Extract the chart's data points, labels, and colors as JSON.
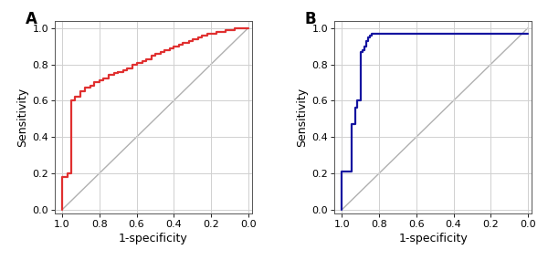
{
  "panel_A": {
    "label": "A",
    "color": "#e03030",
    "roc_fpr": [
      1.0,
      1.0,
      0.97,
      0.97,
      0.95,
      0.95,
      0.93,
      0.93,
      0.9,
      0.9,
      0.88,
      0.88,
      0.85,
      0.85,
      0.83,
      0.83,
      0.8,
      0.8,
      0.78,
      0.78,
      0.75,
      0.75,
      0.72,
      0.72,
      0.7,
      0.7,
      0.67,
      0.67,
      0.65,
      0.65,
      0.62,
      0.62,
      0.6,
      0.6,
      0.57,
      0.57,
      0.55,
      0.55,
      0.52,
      0.52,
      0.5,
      0.5,
      0.47,
      0.47,
      0.45,
      0.45,
      0.42,
      0.42,
      0.4,
      0.4,
      0.37,
      0.37,
      0.35,
      0.35,
      0.32,
      0.32,
      0.3,
      0.3,
      0.27,
      0.27,
      0.25,
      0.25,
      0.22,
      0.22,
      0.2,
      0.2,
      0.17,
      0.17,
      0.15,
      0.15,
      0.12,
      0.12,
      0.1,
      0.1,
      0.07,
      0.07,
      0.05,
      0.05,
      0.02,
      0.02,
      0.0
    ],
    "roc_tpr": [
      0.0,
      0.18,
      0.18,
      0.2,
      0.2,
      0.6,
      0.6,
      0.62,
      0.62,
      0.65,
      0.65,
      0.67,
      0.67,
      0.68,
      0.68,
      0.7,
      0.7,
      0.71,
      0.71,
      0.72,
      0.72,
      0.74,
      0.74,
      0.75,
      0.75,
      0.76,
      0.76,
      0.77,
      0.77,
      0.78,
      0.78,
      0.8,
      0.8,
      0.81,
      0.81,
      0.82,
      0.82,
      0.83,
      0.83,
      0.85,
      0.85,
      0.86,
      0.86,
      0.87,
      0.87,
      0.88,
      0.88,
      0.89,
      0.89,
      0.9,
      0.9,
      0.91,
      0.91,
      0.92,
      0.92,
      0.93,
      0.93,
      0.94,
      0.94,
      0.95,
      0.95,
      0.96,
      0.96,
      0.97,
      0.97,
      0.97,
      0.97,
      0.98,
      0.98,
      0.98,
      0.98,
      0.99,
      0.99,
      0.99,
      0.99,
      1.0,
      1.0,
      1.0,
      1.0,
      1.0,
      1.0
    ]
  },
  "panel_B": {
    "label": "B",
    "color": "#1515a0",
    "roc_fpr": [
      1.0,
      1.0,
      0.95,
      0.95,
      0.93,
      0.93,
      0.92,
      0.92,
      0.9,
      0.9,
      0.89,
      0.89,
      0.88,
      0.88,
      0.87,
      0.87,
      0.86,
      0.86,
      0.85,
      0.85,
      0.84,
      0.84,
      0.83,
      0.83,
      0.0
    ],
    "roc_tpr": [
      0.0,
      0.21,
      0.21,
      0.47,
      0.47,
      0.56,
      0.56,
      0.6,
      0.6,
      0.87,
      0.87,
      0.88,
      0.88,
      0.9,
      0.9,
      0.93,
      0.93,
      0.95,
      0.95,
      0.96,
      0.96,
      0.97,
      0.97,
      0.97,
      0.97
    ]
  },
  "xlabel": "1-specificity",
  "ylabel": "Sensitivity",
  "xticks": [
    1.0,
    0.8,
    0.6,
    0.4,
    0.2,
    0.0
  ],
  "yticks": [
    0.0,
    0.2,
    0.4,
    0.6,
    0.8,
    1.0
  ],
  "xlim": [
    1.04,
    -0.02
  ],
  "ylim": [
    -0.02,
    1.04
  ],
  "grid_color": "#d0d0d0",
  "diag_color": "#b0b0b0",
  "bg_color": "#ffffff",
  "line_width": 1.6,
  "diag_lw": 1.0
}
